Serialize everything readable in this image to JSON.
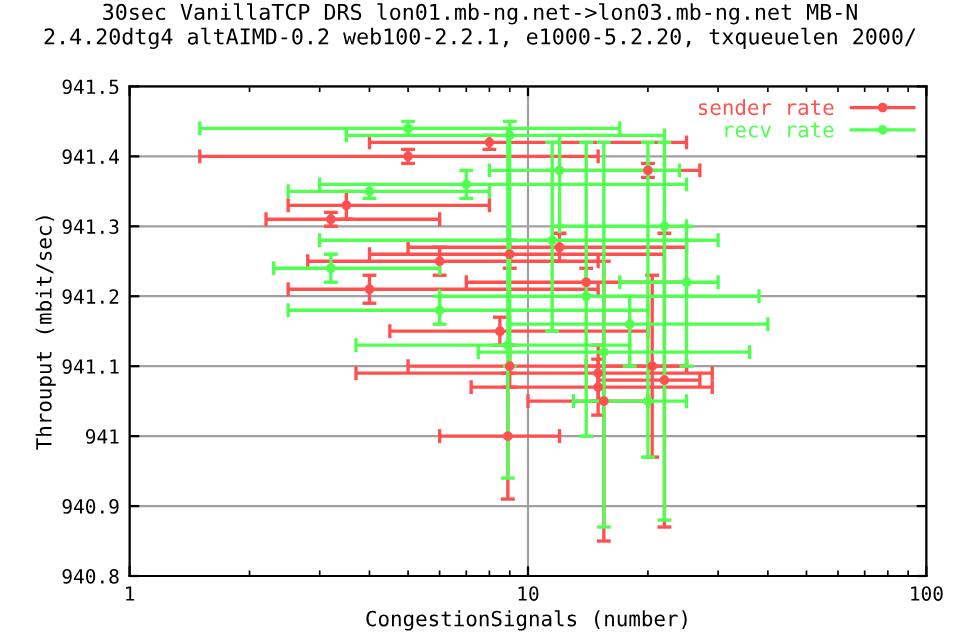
{
  "chart_data": {
    "type": "scatter",
    "title": "30sec VanillaTCP DRS lon01.mb-ng.net->lon03.mb-ng.net MB-N\n2.4.20dtg4 altAIMD-0.2 web100-2.2.1, e1000-5.2.20, txqueuelen 2000/",
    "xlabel": "CongestionSignals (number)",
    "ylabel": "Throuput (mbit/sec)",
    "log": "x",
    "xlim": [
      1,
      100
    ],
    "xticks": [
      1,
      10,
      100
    ],
    "ylim": [
      940.8,
      941.5
    ],
    "yticks": [
      940.8,
      940.9,
      941,
      941.1,
      941.2,
      941.3,
      941.4,
      941.5
    ],
    "grid": true,
    "legend": "top right",
    "marker": "circle",
    "series": [
      {
        "name": "sender rate",
        "color": "#ff5050",
        "x": [
          5,
          8,
          3.5,
          3.2,
          12,
          9,
          6,
          14,
          4,
          20,
          8.5,
          9,
          15,
          15,
          8.9,
          15.5,
          22,
          20.5
        ],
        "values": [
          941.4,
          941.42,
          941.33,
          941.31,
          941.27,
          941.26,
          941.25,
          941.22,
          941.21,
          941.38,
          941.15,
          941.1,
          941.09,
          941.07,
          941.0,
          941.05,
          941.08,
          941.1
        ],
        "errors": [
          [
            941.39,
            941.41
          ],
          [
            941.41,
            941.43
          ],
          [
            941.31,
            941.35
          ],
          [
            941.3,
            941.32
          ],
          [
            941.25,
            941.29
          ],
          [
            941.24,
            941.28
          ],
          [
            941.23,
            941.27
          ],
          [
            941.2,
            941.24
          ],
          [
            941.19,
            941.23
          ],
          [
            941.37,
            941.39
          ],
          [
            941.13,
            941.17
          ],
          [
            941.07,
            941.13
          ],
          [
            941.05,
            941.13
          ],
          [
            941.03,
            941.11
          ],
          [
            940.91,
            941.09
          ],
          [
            940.85,
            941.25
          ],
          [
            940.87,
            941.29
          ],
          [
            940.97,
            941.23
          ]
        ],
        "xerrors": [
          [
            1.5,
            15
          ],
          [
            4,
            25
          ],
          [
            2.5,
            8
          ],
          [
            2.2,
            6
          ],
          [
            5,
            25
          ],
          [
            4,
            22
          ],
          [
            2.8,
            15
          ],
          [
            7,
            25
          ],
          [
            2.5,
            15
          ],
          [
            12,
            27
          ],
          [
            4.5,
            20
          ],
          [
            5,
            25
          ],
          [
            3.7,
            29
          ],
          [
            7.2,
            29
          ],
          [
            6,
            12
          ],
          [
            10,
            20
          ],
          [
            15,
            27
          ],
          [
            14,
            25
          ]
        ]
      },
      {
        "name": "recv rate",
        "color": "#50ff50",
        "x": [
          5,
          9,
          8.9,
          15.5,
          22,
          11.5,
          4,
          3.2,
          20,
          14,
          7,
          18,
          6,
          12,
          25
        ],
        "values": [
          941.44,
          941.43,
          941.13,
          941.12,
          941.3,
          941.28,
          941.35,
          941.24,
          941.05,
          941.2,
          941.36,
          941.16,
          941.18,
          941.38,
          941.22
        ],
        "errors": [
          [
            941.43,
            941.45
          ],
          [
            941.1,
            941.45
          ],
          [
            940.94,
            941.44
          ],
          [
            940.87,
            941.42
          ],
          [
            940.88,
            941.42
          ],
          [
            941.15,
            941.42
          ],
          [
            941.34,
            941.36
          ],
          [
            941.22,
            941.26
          ],
          [
            940.97,
            941.42
          ],
          [
            941.0,
            941.42
          ],
          [
            941.34,
            941.38
          ],
          [
            941.1,
            941.2
          ],
          [
            941.16,
            941.2
          ],
          [
            941.3,
            941.43
          ],
          [
            941.1,
            941.3
          ]
        ],
        "xerrors": [
          [
            1.5,
            17
          ],
          [
            3.5,
            22
          ],
          [
            3.7,
            18
          ],
          [
            7.5,
            36
          ],
          [
            12,
            25
          ],
          [
            3,
            30
          ],
          [
            2.5,
            8
          ],
          [
            2.3,
            6
          ],
          [
            13,
            25
          ],
          [
            6,
            38
          ],
          [
            3,
            25
          ],
          [
            9,
            40
          ],
          [
            2.5,
            20
          ],
          [
            8,
            24
          ],
          [
            17,
            30
          ]
        ]
      }
    ]
  }
}
